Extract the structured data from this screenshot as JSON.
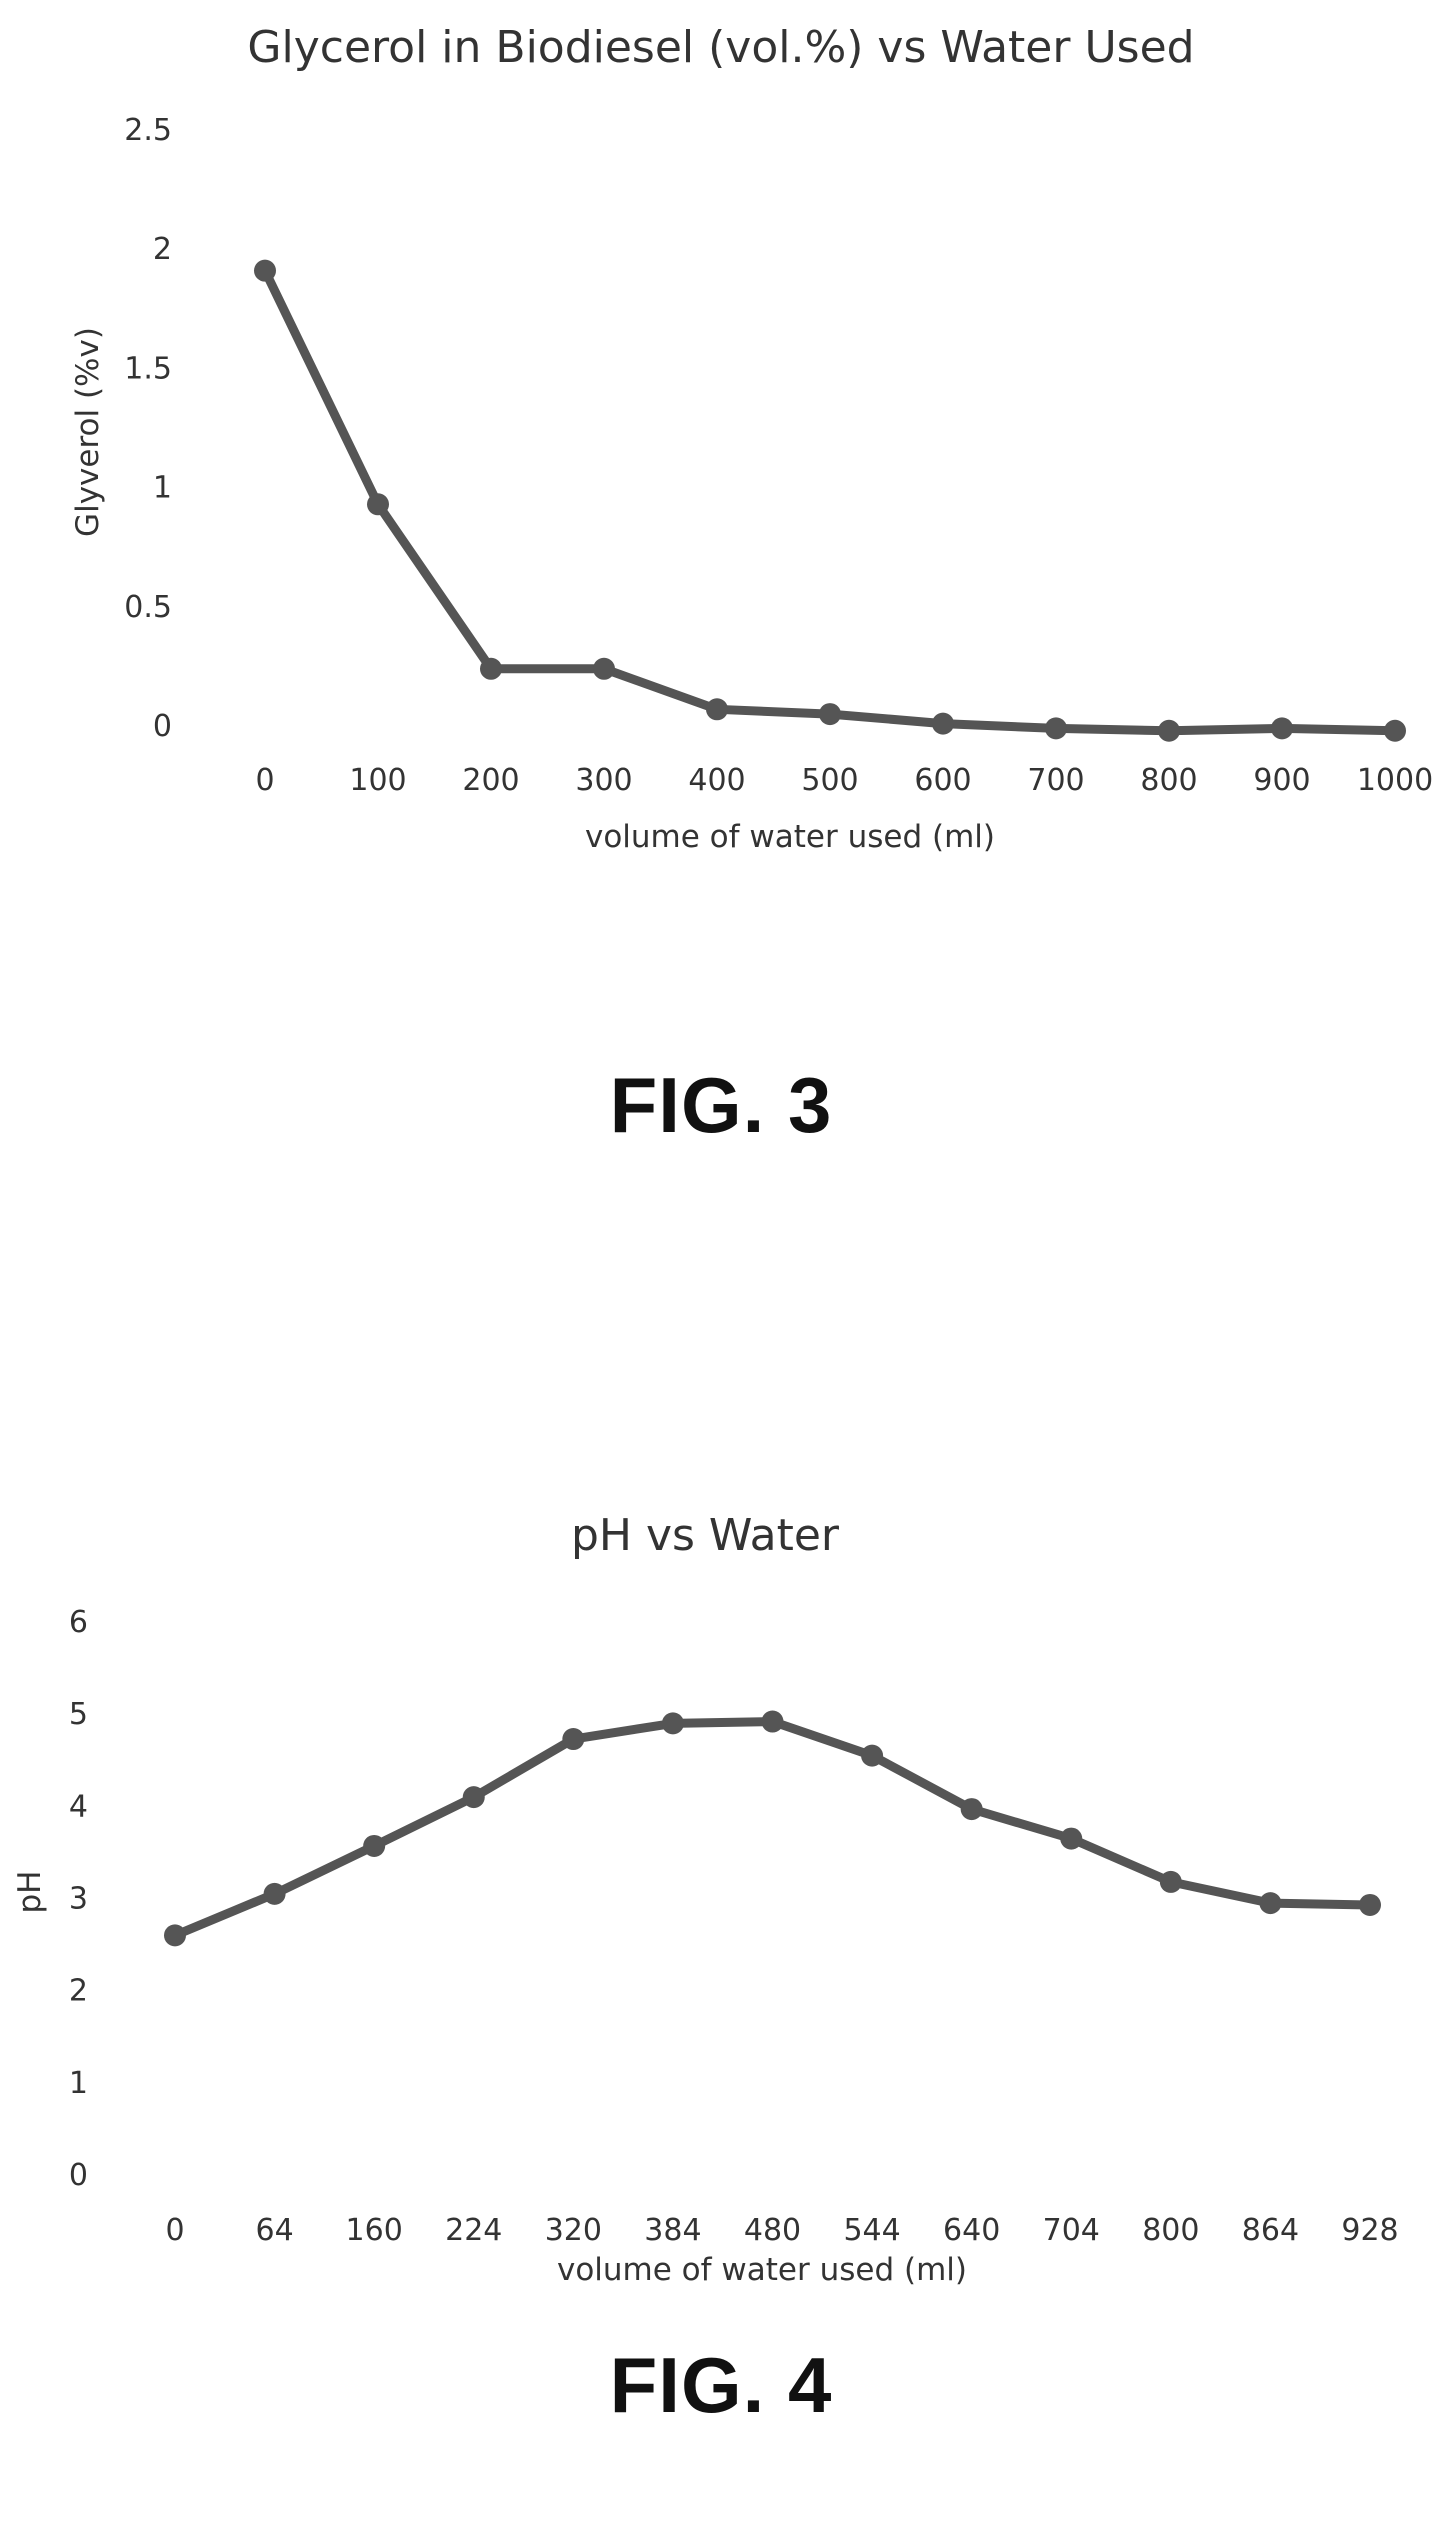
{
  "figures": [
    {
      "caption": "FIG. 3"
    },
    {
      "caption": "FIG. 4"
    }
  ],
  "chart_data": [
    {
      "type": "line",
      "title": "Glycerol in Biodiesel (vol.%) vs Water Used",
      "xlabel": "volume of water used (ml)",
      "ylabel": "Glyverol (%v)",
      "categories": [
        "0",
        "100",
        "200",
        "300",
        "400",
        "500",
        "600",
        "700",
        "800",
        "900",
        "1000"
      ],
      "series": [
        {
          "values": [
            1.91,
            0.93,
            0.24,
            0.24,
            0.07,
            0.05,
            0.01,
            -0.01,
            -0.02,
            -0.01,
            -0.02
          ]
        }
      ],
      "yticks": [
        "0",
        "0.5",
        "1",
        "1.5",
        "2",
        "2.5"
      ],
      "ylim": [
        0,
        2.5
      ],
      "grid": false,
      "legend": "none",
      "line_color": "#555555"
    },
    {
      "type": "line",
      "title": "pH vs Water",
      "xlabel": "volume of water used (ml)",
      "ylabel": "pH",
      "categories": [
        "0",
        "64",
        "160",
        "224",
        "320",
        "384",
        "480",
        "544",
        "640",
        "704",
        "800",
        "864",
        "928"
      ],
      "series": [
        {
          "values": [
            2.6,
            3.05,
            3.57,
            4.1,
            4.73,
            4.9,
            4.92,
            4.55,
            3.97,
            3.65,
            3.18,
            2.95,
            2.93
          ]
        }
      ],
      "yticks": [
        "0",
        "1",
        "2",
        "3",
        "4",
        "5",
        "6"
      ],
      "ylim": [
        0,
        6
      ],
      "grid": false,
      "legend": "none",
      "line_color": "#555555"
    }
  ]
}
